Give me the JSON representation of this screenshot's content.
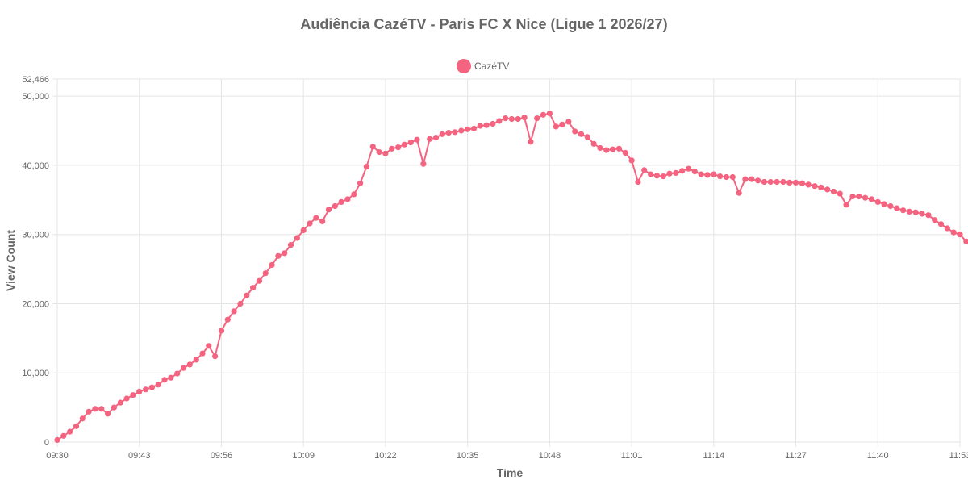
{
  "chart_data": {
    "type": "line",
    "title": "Audiência CazéTV - Paris FC X Nice (Ligue 1 2026/27)",
    "xlabel": "Time",
    "ylabel": "View Count",
    "legend": {
      "placement": "top-center",
      "label": "CazéTV"
    },
    "colors": {
      "series": "#f4637f",
      "grid": "#e5e5e5",
      "text": "#666666"
    },
    "x_tick_labels": [
      "09:30",
      "09:43",
      "09:56",
      "10:09",
      "10:22",
      "10:35",
      "10:48",
      "11:01",
      "11:14",
      "11:27",
      "11:40",
      "11:53"
    ],
    "y_tick_labels": [
      "0",
      "10,000",
      "20,000",
      "30,000",
      "40,000",
      "50,000",
      "52,466"
    ],
    "ylim": [
      0,
      52466
    ],
    "x_range_minutes": [
      0,
      143
    ],
    "series": [
      {
        "name": "CazéTV",
        "values": [
          300,
          900,
          1500,
          2300,
          3400,
          4400,
          4800,
          4800,
          4100,
          5000,
          5700,
          6300,
          6800,
          7300,
          7600,
          7900,
          8300,
          9000,
          9300,
          9900,
          10700,
          11200,
          11900,
          12800,
          13900,
          12400,
          16100,
          17700,
          18900,
          20000,
          21200,
          22300,
          23300,
          24400,
          25600,
          26900,
          27300,
          28500,
          29500,
          30600,
          31600,
          32400,
          31900,
          33600,
          34100,
          34700,
          35100,
          35800,
          37400,
          39800,
          42700,
          41900,
          41700,
          42400,
          42600,
          43000,
          43300,
          43700,
          40200,
          43800,
          44000,
          44500,
          44700,
          44800,
          45000,
          45200,
          45300,
          45700,
          45800,
          46000,
          46400,
          46800,
          46700,
          46700,
          46900,
          43400,
          46800,
          47300,
          47500,
          45600,
          45900,
          46300,
          44900,
          44500,
          44100,
          43100,
          42500,
          42200,
          42300,
          42400,
          41800,
          40700,
          37600,
          39300,
          38700,
          38500,
          38400,
          38800,
          38900,
          39200,
          39500,
          39100,
          38700,
          38600,
          38700,
          38400,
          38300,
          38300,
          36000,
          38000,
          38000,
          37800,
          37600,
          37600,
          37600,
          37600,
          37500,
          37500,
          37400,
          37200,
          37000,
          36800,
          36500,
          36200,
          35900,
          34300,
          35500,
          35500,
          35300,
          35100,
          34700,
          34400,
          34100,
          33800,
          33500,
          33300,
          33200,
          33000,
          32800,
          32100,
          31500,
          30900,
          30300,
          30000,
          29000
        ]
      }
    ]
  }
}
